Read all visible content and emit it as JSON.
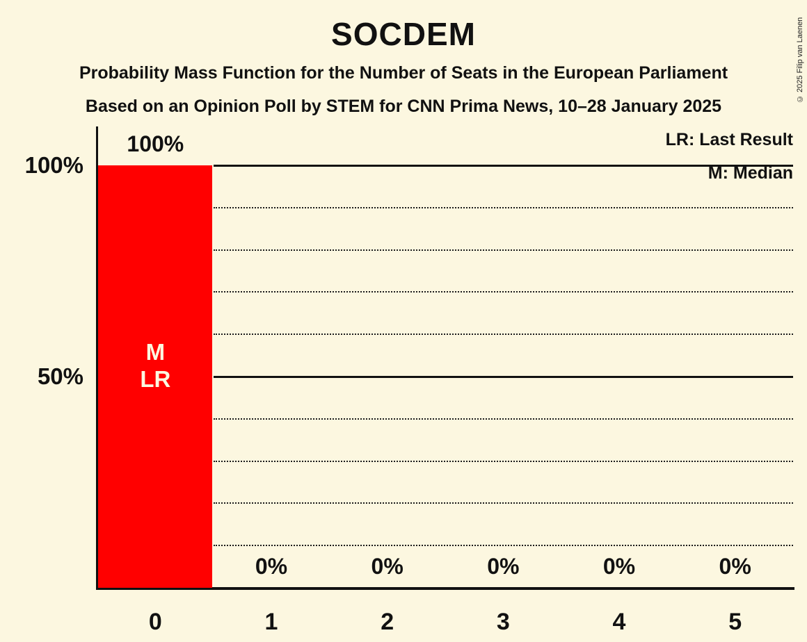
{
  "header": {
    "title": "SOCDEM",
    "subtitle1": "Probability Mass Function for the Number of Seats in the European Parliament",
    "subtitle2": "Based on an Opinion Poll by STEM for CNN Prima News, 10–28 January 2025",
    "copyright": "© 2025 Filip van Laenen"
  },
  "legend": {
    "lr": "LR: Last Result",
    "m": "M: Median"
  },
  "chart_data": {
    "type": "bar",
    "title": "SOCDEM",
    "subtitle": "Probability Mass Function for the Number of Seats in the European Parliament — Based on an Opinion Poll by STEM for CNN Prima News, 10–28 January 2025",
    "categories": [
      "0",
      "1",
      "2",
      "3",
      "4",
      "5"
    ],
    "values": [
      100,
      0,
      0,
      0,
      0,
      0
    ],
    "value_labels": [
      "100%",
      "0%",
      "0%",
      "0%",
      "0%",
      "0%"
    ],
    "xlabel": "",
    "ylabel": "",
    "ylim": [
      0,
      100
    ],
    "y_axis_labels": [
      {
        "value": 100,
        "label": "100%"
      },
      {
        "value": 50,
        "label": "50%"
      }
    ],
    "solid_gridlines": [
      100,
      50
    ],
    "dotted_gridlines": [
      90,
      80,
      70,
      60,
      40,
      30,
      20,
      10
    ],
    "grid": true,
    "legend_position": "top-right",
    "bar_annotations": [
      {
        "category": 0,
        "lines": [
          "M",
          "LR"
        ]
      }
    ]
  },
  "colors": {
    "background": "#fcf7e0",
    "bar": "#ff0000",
    "text": "#111111",
    "bar_text": "#fcf7e0"
  }
}
